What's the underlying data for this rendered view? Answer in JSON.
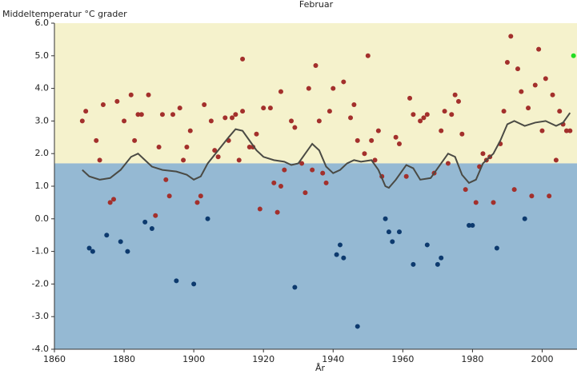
{
  "chart_data": {
    "type": "scatter",
    "title": "Februar",
    "y_label": "Middeltemperatur °C grader",
    "x_label": "År",
    "xlim": [
      1860,
      2010
    ],
    "ylim": [
      -4,
      6
    ],
    "xticks": [
      1860,
      1880,
      1900,
      1920,
      1940,
      1960,
      1980,
      2000
    ],
    "yticks": [
      {
        "value": -4,
        "label": "-4.0"
      },
      {
        "value": -3,
        "label": "-3.0"
      },
      {
        "value": -2,
        "label": "-2.0"
      },
      {
        "value": -1,
        "label": "-1.0"
      },
      {
        "value": 0,
        "label": "0.0"
      },
      {
        "value": 1,
        "label": "1.0"
      },
      {
        "value": 2,
        "label": "2.0"
      },
      {
        "value": 3,
        "label": "3.0"
      },
      {
        "value": 4,
        "label": "4.0"
      },
      {
        "value": 5,
        "label": "5.0"
      },
      {
        "value": 6,
        "label": "6.0"
      }
    ],
    "reference_value": 1.7,
    "above_color": "#f5f2cc",
    "below_color": "#95b9d3",
    "series": [
      {
        "color": "#a3302c",
        "x": [
          1868,
          1869,
          1872,
          1873,
          1874,
          1876,
          1877,
          1878,
          1880,
          1882,
          1883,
          1884,
          1885,
          1887,
          1889,
          1890,
          1891,
          1892,
          1893,
          1894,
          1896,
          1897,
          1898,
          1899,
          1901,
          1902,
          1903,
          1905,
          1906,
          1907,
          1909,
          1910,
          1911,
          1912,
          1913,
          1914,
          1914,
          1916,
          1917,
          1918,
          1919,
          1920,
          1922,
          1923,
          1924,
          1925,
          1925,
          1926,
          1928,
          1929,
          1931,
          1932,
          1933,
          1934,
          1935,
          1936,
          1937,
          1938,
          1939,
          1940,
          1943,
          1945,
          1946,
          1947,
          1949,
          1950,
          1951,
          1952,
          1953,
          1954,
          1958,
          1959,
          1961,
          1962,
          1963,
          1965,
          1966,
          1967,
          1969,
          1971,
          1972,
          1973,
          1974,
          1975,
          1976,
          1977,
          1978,
          1981,
          1982,
          1983,
          1984,
          1985,
          1986,
          1988,
          1989,
          1990,
          1991,
          1992,
          1993,
          1994,
          1996,
          1997,
          1998,
          1999,
          2000,
          2001,
          2002,
          2003,
          2004,
          2005,
          2006,
          2007,
          2008
        ],
        "values": [
          3.0,
          3.3,
          2.4,
          1.8,
          3.5,
          0.5,
          0.6,
          3.6,
          3.0,
          3.8,
          2.4,
          3.2,
          3.2,
          3.8,
          0.1,
          2.2,
          3.2,
          1.2,
          0.7,
          3.2,
          3.4,
          1.8,
          2.2,
          2.7,
          0.5,
          0.7,
          3.5,
          3.0,
          2.1,
          1.9,
          3.1,
          2.4,
          3.1,
          3.2,
          1.8,
          3.3,
          4.9,
          2.2,
          2.2,
          2.6,
          0.3,
          3.4,
          3.4,
          1.1,
          0.2,
          1.0,
          3.9,
          1.5,
          3.0,
          2.8,
          1.7,
          0.8,
          4.0,
          1.5,
          4.7,
          3.0,
          1.4,
          1.1,
          3.3,
          4.0,
          4.2,
          3.1,
          3.5,
          2.4,
          2.0,
          5.0,
          2.4,
          1.8,
          2.7,
          1.3,
          2.5,
          2.3,
          1.3,
          3.7,
          3.2,
          3.0,
          3.1,
          3.2,
          1.4,
          2.7,
          3.3,
          1.7,
          3.2,
          3.8,
          3.6,
          2.6,
          0.9,
          0.5,
          1.6,
          2.0,
          1.8,
          1.9,
          0.5,
          2.3,
          3.3,
          4.8,
          5.6,
          0.9,
          4.6,
          3.9,
          3.4,
          0.7,
          4.1,
          5.2,
          2.7,
          4.3,
          0.7,
          3.8,
          1.8,
          3.3,
          2.9,
          2.7,
          2.7
        ]
      },
      {
        "color": "#0d3a6e",
        "x": [
          1870,
          1871,
          1875,
          1879,
          1881,
          1886,
          1888,
          1895,
          1900,
          1904,
          1929,
          1941,
          1942,
          1943,
          1947,
          1955,
          1956,
          1957,
          1959,
          1963,
          1967,
          1970,
          1971,
          1979,
          1980,
          1987,
          1995
        ],
        "values": [
          -0.9,
          -1.0,
          -0.5,
          -0.7,
          -1.0,
          -0.1,
          -0.3,
          -1.9,
          -2.0,
          0.0,
          -2.1,
          -1.1,
          -0.8,
          -1.2,
          -3.3,
          0.0,
          -0.4,
          -0.7,
          -0.4,
          -1.4,
          -0.8,
          -1.4,
          -1.2,
          -0.2,
          -0.2,
          -0.9,
          0.0
        ]
      },
      {
        "color": "#22dd22",
        "x": [
          2009
        ],
        "values": [
          5.0
        ]
      },
      {
        "type": "line",
        "color": "#4a4a44",
        "x": [
          1868,
          1870,
          1873,
          1876,
          1879,
          1882,
          1884,
          1886,
          1888,
          1891,
          1895,
          1898,
          1900,
          1902,
          1904,
          1907,
          1910,
          1912,
          1914,
          1916,
          1918,
          1920,
          1923,
          1926,
          1928,
          1930,
          1932,
          1934,
          1936,
          1938,
          1940,
          1942,
          1944,
          1946,
          1948,
          1951,
          1953,
          1955,
          1956,
          1958,
          1961,
          1963,
          1965,
          1968,
          1970,
          1973,
          1975,
          1977,
          1979,
          1981,
          1983,
          1986,
          1988,
          1990,
          1992,
          1995,
          1998,
          2001,
          2004,
          2006,
          2008
        ],
        "values": [
          1.5,
          1.3,
          1.2,
          1.25,
          1.5,
          1.9,
          2.0,
          1.8,
          1.6,
          1.5,
          1.45,
          1.35,
          1.2,
          1.3,
          1.7,
          2.1,
          2.5,
          2.75,
          2.7,
          2.4,
          2.1,
          1.9,
          1.8,
          1.75,
          1.65,
          1.7,
          2.0,
          2.3,
          2.1,
          1.6,
          1.4,
          1.5,
          1.7,
          1.8,
          1.75,
          1.8,
          1.5,
          1.0,
          0.95,
          1.2,
          1.65,
          1.55,
          1.2,
          1.25,
          1.55,
          2.0,
          1.9,
          1.35,
          1.1,
          1.2,
          1.7,
          2.0,
          2.4,
          2.9,
          3.0,
          2.85,
          2.95,
          3.0,
          2.85,
          2.95,
          3.25
        ]
      }
    ]
  }
}
